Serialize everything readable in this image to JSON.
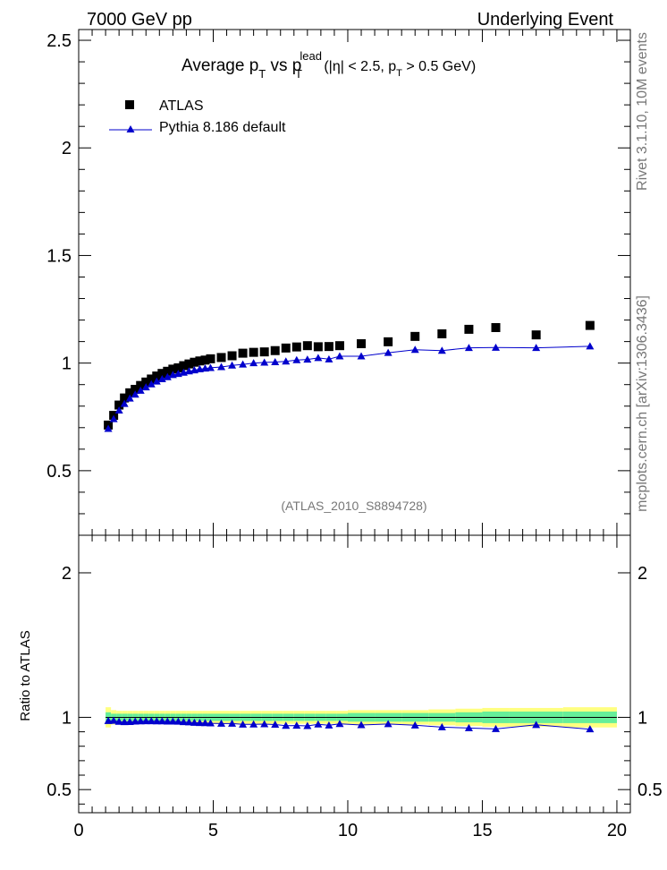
{
  "header": {
    "left": "7000 GeV pp",
    "right": "Underlying Event"
  },
  "side_labels": {
    "right_top": "Rivet 3.1.10, 10M events",
    "right_bottom": "mcplots.cern.ch [arXiv:1306.3436]"
  },
  "chart_data": [
    {
      "type": "scatter",
      "panel": "main",
      "title": {
        "main": "Average p",
        "sub1": "T",
        "vs": " vs p",
        "sup": "lead",
        "sub2": "T",
        "tail_a": " (|η| < 2.5, p",
        "sub3": "T",
        "tail_b": " > 0.5 GeV)"
      },
      "watermark": "(ATLAS_2010_S8894728)",
      "xlim": [
        0,
        20.5
      ],
      "ylim": [
        0.2,
        2.55
      ],
      "xticks": [
        "0",
        "5",
        "10",
        "15",
        "20"
      ],
      "yticks": [
        "0.5",
        "1",
        "1.5",
        "2",
        "2.5"
      ],
      "legend": {
        "position": "top-left",
        "entries": [
          "ATLAS",
          "Pythia 8.186 default"
        ]
      },
      "series": [
        {
          "name": "ATLAS",
          "marker": "square",
          "color": "#000000",
          "x": [
            1.1,
            1.3,
            1.5,
            1.7,
            1.9,
            2.1,
            2.3,
            2.5,
            2.7,
            2.9,
            3.1,
            3.3,
            3.5,
            3.7,
            3.9,
            4.1,
            4.3,
            4.5,
            4.7,
            4.9,
            5.3,
            5.7,
            6.1,
            6.5,
            6.9,
            7.3,
            7.7,
            8.1,
            8.5,
            8.9,
            9.3,
            9.7,
            10.5,
            11.5,
            12.5,
            13.5,
            14.5,
            15.5,
            17.0,
            19.0
          ],
          "y": [
            0.712,
            0.757,
            0.805,
            0.838,
            0.862,
            0.878,
            0.896,
            0.912,
            0.926,
            0.94,
            0.952,
            0.962,
            0.972,
            0.978,
            0.988,
            0.996,
            1.004,
            1.01,
            1.014,
            1.02,
            1.026,
            1.034,
            1.046,
            1.05,
            1.052,
            1.058,
            1.07,
            1.075,
            1.081,
            1.076,
            1.077,
            1.081,
            1.09,
            1.099,
            1.124,
            1.136,
            1.157,
            1.165,
            1.131,
            1.175
          ]
        },
        {
          "name": "Pythia 8.186 default",
          "marker": "triangle",
          "color": "#0000cc",
          "x": [
            1.1,
            1.3,
            1.5,
            1.7,
            1.9,
            2.1,
            2.3,
            2.5,
            2.7,
            2.9,
            3.1,
            3.3,
            3.5,
            3.7,
            3.9,
            4.1,
            4.3,
            4.5,
            4.7,
            4.9,
            5.3,
            5.7,
            6.1,
            6.5,
            6.9,
            7.3,
            7.7,
            8.1,
            8.5,
            8.9,
            9.3,
            9.7,
            10.5,
            11.5,
            12.5,
            13.5,
            14.5,
            15.5,
            17.0,
            19.0
          ],
          "y": [
            0.695,
            0.74,
            0.78,
            0.811,
            0.836,
            0.854,
            0.872,
            0.888,
            0.902,
            0.915,
            0.926,
            0.935,
            0.945,
            0.95,
            0.956,
            0.962,
            0.967,
            0.972,
            0.975,
            0.978,
            0.982,
            0.989,
            0.994,
            1.0,
            1.003,
            1.005,
            1.008,
            1.014,
            1.017,
            1.024,
            1.018,
            1.032,
            1.032,
            1.048,
            1.062,
            1.058,
            1.071,
            1.072,
            1.071,
            1.078
          ]
        }
      ]
    },
    {
      "type": "scatter",
      "panel": "ratio",
      "ylabel": "Ratio to ATLAS",
      "xlim": [
        0,
        20.5
      ],
      "ylim": [
        0.34,
        2.26
      ],
      "xticks": [
        "0",
        "5",
        "10",
        "15",
        "20"
      ],
      "yticks": [
        "0.5",
        "1",
        "2"
      ],
      "band": {
        "yellow_color": "#ffff80",
        "green_color": "#66ee99",
        "x_edges": [
          1.0,
          1.2,
          1.4,
          1.6,
          1.8,
          2.0,
          2.2,
          2.4,
          2.6,
          2.8,
          3.0,
          3.2,
          3.4,
          3.6,
          3.8,
          4.0,
          4.2,
          4.4,
          4.6,
          4.8,
          5.0,
          5.6,
          6.0,
          6.4,
          6.8,
          7.2,
          7.6,
          8.0,
          8.4,
          8.8,
          9.2,
          9.6,
          10.0,
          11.0,
          12.0,
          13.0,
          14.0,
          15.0,
          16.0,
          18.0,
          20.0
        ],
        "yellow_half": [
          0.07,
          0.05,
          0.045,
          0.045,
          0.045,
          0.045,
          0.045,
          0.045,
          0.045,
          0.045,
          0.045,
          0.045,
          0.045,
          0.045,
          0.045,
          0.045,
          0.045,
          0.045,
          0.045,
          0.045,
          0.045,
          0.045,
          0.045,
          0.045,
          0.045,
          0.045,
          0.045,
          0.045,
          0.045,
          0.045,
          0.045,
          0.045,
          0.05,
          0.05,
          0.05,
          0.055,
          0.06,
          0.065,
          0.065,
          0.07
        ],
        "green_half": [
          0.035,
          0.025,
          0.025,
          0.025,
          0.025,
          0.025,
          0.025,
          0.025,
          0.025,
          0.025,
          0.025,
          0.025,
          0.025,
          0.025,
          0.025,
          0.025,
          0.025,
          0.025,
          0.025,
          0.025,
          0.025,
          0.025,
          0.025,
          0.025,
          0.025,
          0.025,
          0.025,
          0.025,
          0.025,
          0.025,
          0.025,
          0.025,
          0.03,
          0.03,
          0.03,
          0.03,
          0.035,
          0.04,
          0.04,
          0.04
        ]
      },
      "series": [
        {
          "name": "Pythia 8.186 default",
          "marker": "triangle",
          "color": "#0000cc",
          "x": [
            1.1,
            1.3,
            1.5,
            1.7,
            1.9,
            2.1,
            2.3,
            2.5,
            2.7,
            2.9,
            3.1,
            3.3,
            3.5,
            3.7,
            3.9,
            4.1,
            4.3,
            4.5,
            4.7,
            4.9,
            5.3,
            5.7,
            6.1,
            6.5,
            6.9,
            7.3,
            7.7,
            8.1,
            8.5,
            8.9,
            9.3,
            9.7,
            10.5,
            11.5,
            12.5,
            13.5,
            14.5,
            15.5,
            17.0,
            19.0
          ],
          "y": [
            0.976,
            0.977,
            0.97,
            0.968,
            0.969,
            0.972,
            0.973,
            0.974,
            0.974,
            0.973,
            0.973,
            0.972,
            0.972,
            0.971,
            0.968,
            0.966,
            0.963,
            0.962,
            0.961,
            0.959,
            0.957,
            0.957,
            0.951,
            0.952,
            0.953,
            0.95,
            0.942,
            0.943,
            0.941,
            0.952,
            0.945,
            0.955,
            0.947,
            0.954,
            0.945,
            0.932,
            0.926,
            0.92,
            0.948,
            0.918
          ]
        }
      ]
    }
  ]
}
